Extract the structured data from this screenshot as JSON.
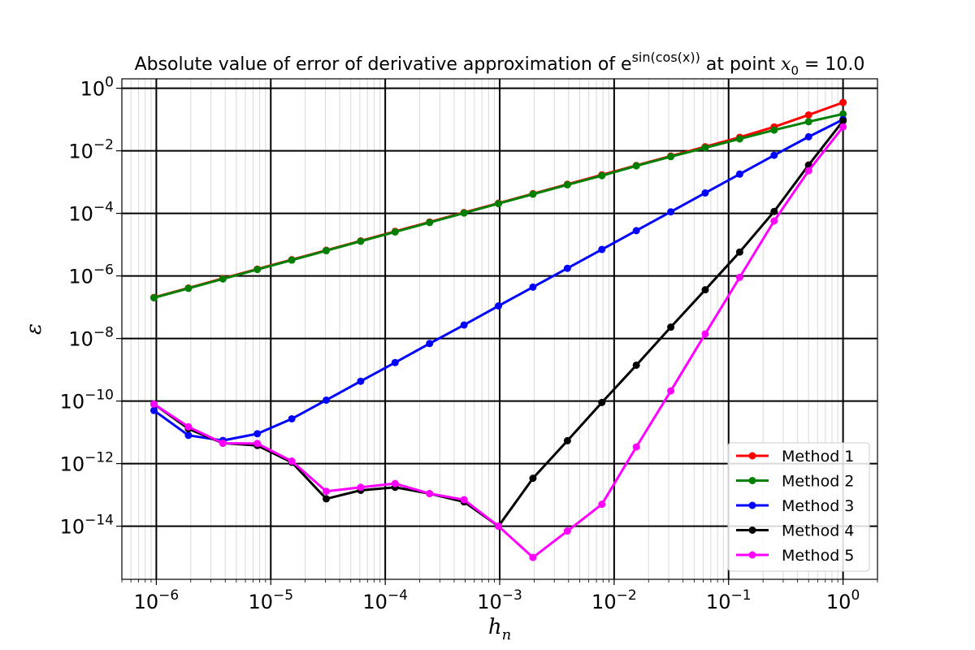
{
  "chart_data": {
    "type": "line",
    "title": "Absolute value of error of derivative approximation of e",
    "title_exponent": "sin(cos(x))",
    "title_suffix": " at point ",
    "title_var": "x",
    "title_sub": "0",
    "title_value": " = 10.0",
    "xlabel": "h",
    "xlabel_sub": "n",
    "ylabel": "ε",
    "xscale": "log",
    "yscale": "log",
    "xlim": [
      5e-07,
      2
    ],
    "ylim": [
      2e-16,
      2
    ],
    "grid": true,
    "legend_position": "bottom-right",
    "x_ticks": [
      {
        "exp": "−6",
        "value": 1e-06
      },
      {
        "exp": "−5",
        "value": 1e-05
      },
      {
        "exp": "−4",
        "value": 0.0001
      },
      {
        "exp": "−3",
        "value": 0.001
      },
      {
        "exp": "−2",
        "value": 0.01
      },
      {
        "exp": "−1",
        "value": 0.1
      },
      {
        "exp": "0",
        "value": 1
      }
    ],
    "y_ticks": [
      {
        "exp": "0",
        "value": 1
      },
      {
        "exp": "−2",
        "value": 0.01
      },
      {
        "exp": "−4",
        "value": 0.0001
      },
      {
        "exp": "−6",
        "value": 1e-06
      },
      {
        "exp": "−8",
        "value": 1e-08
      },
      {
        "exp": "−10",
        "value": 1e-10
      },
      {
        "exp": "−12",
        "value": 1e-12
      },
      {
        "exp": "−14",
        "value": 1e-14
      }
    ],
    "tick_base": "10",
    "x": [
      1.0,
      0.5,
      0.25,
      0.125,
      0.0625,
      0.03125,
      0.015625,
      0.0078125,
      0.00390625,
      0.001953125,
      0.0009765625,
      0.00048828125,
      0.000244140625,
      0.0001220703125,
      6.103515625e-05,
      3.0517578125e-05,
      1.52587890625e-05,
      7.62939453125e-06,
      3.814697265625e-06,
      1.9073486328125e-06,
      9.5367431640625e-07
    ],
    "series": [
      {
        "name": "Method 1",
        "color": "#ff0000",
        "values": [
          0.35,
          0.14,
          0.058,
          0.027,
          0.0135,
          0.0068,
          0.0034,
          0.0017,
          0.00085,
          0.000425,
          0.000212,
          0.000106,
          5.3e-05,
          2.65e-05,
          1.32e-05,
          6.6e-06,
          3.3e-06,
          1.65e-06,
          8.3e-07,
          4.1e-07,
          2.05e-07
        ]
      },
      {
        "name": "Method 2",
        "color": "#008000",
        "values": [
          0.15,
          0.085,
          0.046,
          0.024,
          0.0125,
          0.0065,
          0.0033,
          0.0016,
          0.00082,
          0.00041,
          0.000205,
          0.0001025,
          5.1e-05,
          2.55e-05,
          1.28e-05,
          6.4e-06,
          3.2e-06,
          1.6e-06,
          8e-07,
          4e-07,
          2e-07
        ]
      },
      {
        "name": "Method 3",
        "color": "#0000ff",
        "values": [
          0.1,
          0.028,
          0.0072,
          0.0018,
          0.00045,
          0.000112,
          2.8e-05,
          7e-06,
          1.75e-06,
          4.4e-07,
          1.1e-07,
          2.7e-08,
          6.9e-09,
          1.7e-09,
          4.3e-10,
          1.07e-10,
          2.7e-11,
          9e-12,
          5.5e-12,
          8e-12,
          5e-11
        ]
      },
      {
        "name": "Method 4",
        "color": "#000000",
        "values": [
          0.09,
          0.0035,
          0.000115,
          5.8e-06,
          3.6e-07,
          2.3e-08,
          1.4e-09,
          9e-11,
          5.4e-12,
          3.4e-13,
          1e-14,
          6e-14,
          1.1e-13,
          1.75e-13,
          1.4e-13,
          7.5e-14,
          1.1e-12,
          3.8e-12,
          4.5e-12,
          1.3e-11,
          8e-11
        ]
      },
      {
        "name": "Method 5",
        "color": "#ff00ff",
        "values": [
          0.058,
          0.0023,
          5.7e-05,
          9e-07,
          1.4e-08,
          2.1e-10,
          3.4e-12,
          5e-14,
          7e-15,
          1e-15,
          1e-14,
          7e-14,
          1.1e-13,
          2.3e-13,
          1.75e-13,
          1.3e-13,
          1.2e-12,
          4.4e-12,
          4.5e-12,
          1.5e-11,
          8e-11
        ]
      }
    ]
  }
}
